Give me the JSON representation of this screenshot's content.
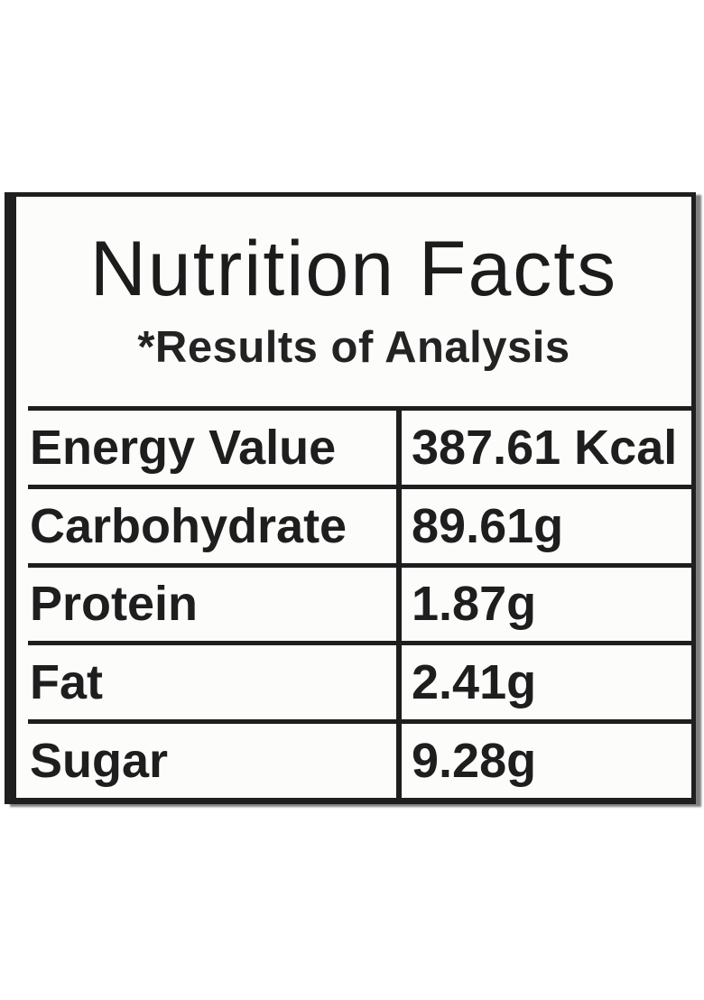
{
  "label": {
    "title": "Nutrition Facts",
    "subtitle": "*Results of Analysis",
    "rows": [
      {
        "name": "Energy Value",
        "value": "387.61 Kcal"
      },
      {
        "name": "Carbohydrate",
        "value": "89.61g"
      },
      {
        "name": "Protein",
        "value": "1.87g"
      },
      {
        "name": "Fat",
        "value": "2.41g"
      },
      {
        "name": "Sugar",
        "value": "9.28g"
      }
    ],
    "colors": {
      "border": "#1f1e1e",
      "text": "#1d1c1c",
      "background": "#fcfcfb",
      "shadow": "#5f5f5f",
      "page_background": "#ffffff"
    }
  }
}
